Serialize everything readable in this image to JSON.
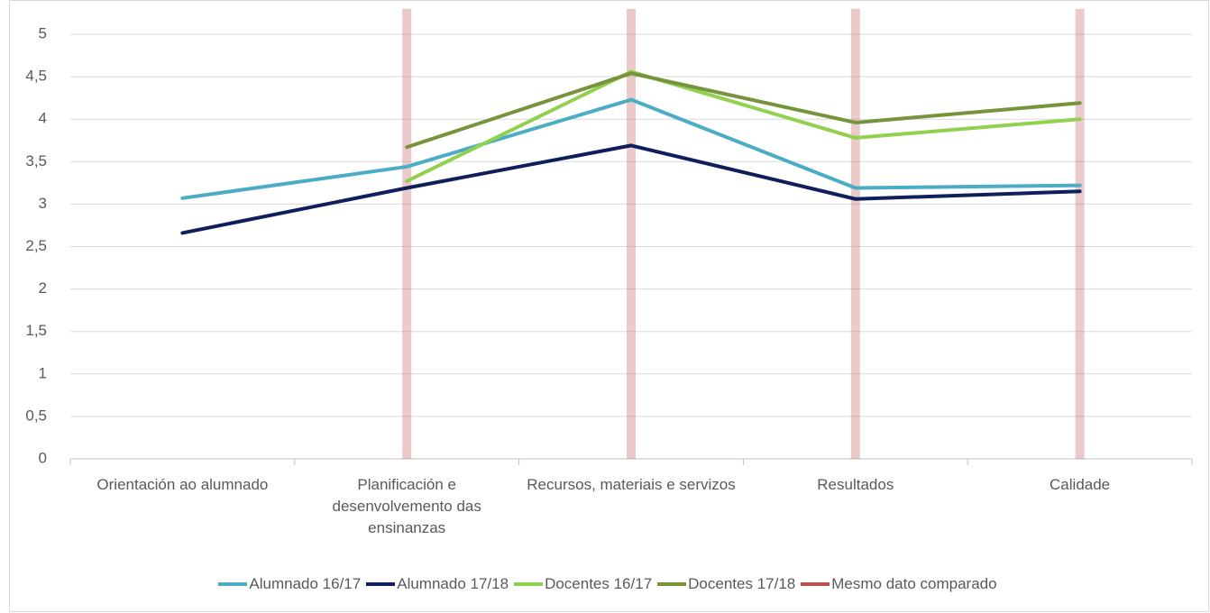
{
  "chart_data": {
    "type": "line",
    "categories": [
      "Orientación ao alumnado",
      "Planificación e desenvolvemento das ensinanzas",
      "Recursos, materiais e servizos",
      "Resultados",
      "Calidade"
    ],
    "series": [
      {
        "name": "Alumnado 16/17",
        "color": "#4bacc6",
        "values": [
          3.07,
          3.44,
          4.23,
          3.19,
          3.22
        ]
      },
      {
        "name": "Alumnado 17/18",
        "color": "#0f1f5c",
        "values": [
          2.66,
          3.19,
          3.69,
          3.06,
          3.15
        ]
      },
      {
        "name": "Docentes 16/17",
        "color": "#92d050",
        "values": [
          null,
          3.27,
          4.56,
          3.78,
          4.0
        ]
      },
      {
        "name": "Docentes 17/18",
        "color": "#77933c",
        "values": [
          null,
          3.67,
          4.54,
          3.96,
          4.19
        ]
      },
      {
        "name": "Mesmo dato comparado",
        "color": "#c0504d",
        "type": "bar",
        "values": [
          null,
          5.3,
          5.3,
          5.3,
          5.3
        ]
      }
    ],
    "ylim": [
      0,
      5
    ],
    "yticks": [
      0,
      {
        "value": 0.5,
        "label": "0,5"
      },
      1,
      {
        "value": 1.5,
        "label": "1,5"
      },
      2,
      {
        "value": 2.5,
        "label": "2,5"
      },
      3,
      {
        "value": 3.5,
        "label": "3,5"
      },
      4,
      {
        "value": 4.5,
        "label": "4,5"
      },
      5
    ],
    "grid": true,
    "legend": "bottom"
  }
}
